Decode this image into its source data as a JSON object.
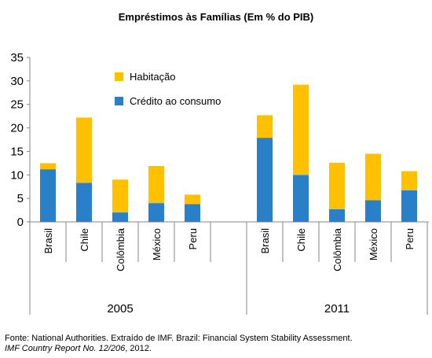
{
  "chart_data": {
    "type": "bar",
    "stacked": true,
    "title": "Empréstimos às Famílias (Em % do PIB)",
    "ylim": [
      0,
      35
    ],
    "yticks": [
      0,
      5,
      10,
      15,
      20,
      25,
      30,
      35
    ],
    "groups": [
      {
        "label": "2005",
        "categories": [
          "Brasil",
          "Chile",
          "Colômbia",
          "México",
          "Peru"
        ]
      },
      {
        "label": "2011",
        "categories": [
          "Brasil",
          "Chile",
          "Colômbia",
          "México",
          "Peru"
        ]
      }
    ],
    "series": [
      {
        "name": "Crédito ao consumo",
        "color": "#2a7fc9",
        "values": [
          [
            11.2,
            8.3,
            2.0,
            4.0,
            3.8
          ],
          [
            17.9,
            10.0,
            2.7,
            4.6,
            6.7
          ]
        ]
      },
      {
        "name": "Habitação",
        "color": "#ffc000",
        "values": [
          [
            1.3,
            13.9,
            7.0,
            7.9,
            2.0
          ],
          [
            4.8,
            19.2,
            9.9,
            9.9,
            4.1
          ]
        ]
      }
    ],
    "legend": [
      "Habitação",
      "Crédito ao consumo"
    ],
    "grid": false,
    "legend_position": "top-left inside plot"
  },
  "source": {
    "line1": "Fonte: National Authorities. Extraído de IMF. Brazil: Financial System Stability Assessment.",
    "line2_italic": "IMF Country Report No. 12/206",
    "line2_rest": ", 2012."
  }
}
